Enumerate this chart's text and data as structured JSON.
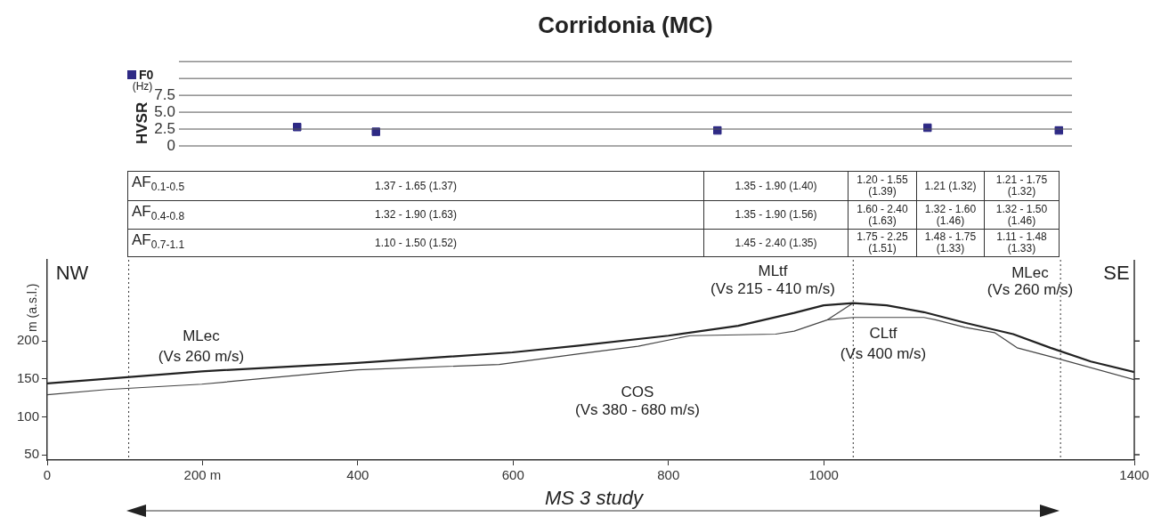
{
  "chart_data": [
    {
      "type": "scatter",
      "title": "Corridonia (MC)",
      "ylabel": "HVSR",
      "annotations": [
        "(Hz)"
      ],
      "categories": [
        null,
        null,
        null,
        null,
        null,
        null,
        null,
        null,
        null,
        null,
        null,
        null,
        null,
        null,
        null,
        null,
        null,
        null,
        null,
        null,
        null,
        null,
        null,
        null,
        null,
        null,
        null,
        null,
        null,
        null,
        null,
        null,
        null,
        null
      ],
      "series": [
        {
          "name": "F0",
          "color": "#2e2a85",
          "values": [
            null,
            null,
            null,
            null,
            2.8,
            null,
            null,
            2.1,
            null,
            null,
            null,
            null,
            null,
            null,
            null,
            null,
            null,
            null,
            null,
            null,
            2.3,
            null,
            null,
            null,
            null,
            null,
            null,
            null,
            2.7,
            null,
            null,
            null,
            null,
            2.3
          ]
        }
      ],
      "ylim": [
        0,
        12.5
      ],
      "yticks": [
        0,
        2.5,
        {
          "value": 5,
          "label": "5.0"
        },
        7.5,
        {
          "value": 10,
          "label": null
        },
        {
          "value": 12.5,
          "label": null
        }
      ],
      "grid": "y",
      "legend": "top left",
      "marker": "square",
      "tick_labels": "y"
    },
    {
      "type": "other",
      "annotations": [
        "AF$_{0.1-0.5}$",
        "1.37 - 1.65 (1.37)",
        "1.35 - 1.90 (1.40)",
        "1.20 - 1.55 (1.39)",
        "1.21 (1.32)",
        "1.21 - 1.75 (1.32)",
        "AF$_{0.4-0.8}$",
        "1.32 - 1.90 (1.63)",
        "1.35 - 1.90 (1.56)",
        "1.60 - 2.40 (1.63)",
        "1.32 - 1.60 (1.46)",
        "1.32 - 1.50 (1.46)",
        "AF$_{0.7-1.1}$",
        "1.10 - 1.50 (1.52)",
        "1.45 - 2.40 (1.35)",
        "1.75 - 2.25 (1.51)",
        "1.48 - 1.75 (1.33)",
        "1.11 - 1.48 (1.33)"
      ]
    },
    {
      "type": "line",
      "ylabel": "m (a.s.l.)",
      "marker": "none",
      "series": [
        {
          "color": "#222222",
          "x": [
            0,
            199,
            399,
            599,
            685,
            800,
            890,
            962,
            1000,
            1038,
            1081,
            1129,
            1182,
            1244,
            1292,
            1344,
            1400
          ],
          "values": [
            144,
            160,
            171,
            185,
            194,
            207,
            220,
            237,
            247,
            250,
            247,
            238,
            224,
            209,
            191,
            173,
            159
          ]
        },
        {
          "color": "#444444",
          "x": [
            0,
            77,
            199,
            399,
            582,
            685,
            761,
            828,
            938,
            962,
            1005,
            1038,
            1129,
            1144,
            1182,
            1220,
            1249,
            1297,
            1400
          ],
          "values": [
            129,
            136,
            143,
            162,
            169,
            183,
            193,
            207,
            209,
            213,
            228,
            231,
            231,
            228,
            218,
            211,
            191,
            178,
            149
          ]
        },
        {
          "color": "#444444",
          "x": [
            1005,
            1038
          ],
          "values": [
            228,
            250
          ]
        }
      ],
      "xlim": [
        0,
        1400
      ],
      "xticks": [
        0,
        {
          "value": 200,
          "label": "200 m"
        },
        400,
        600,
        800,
        1000,
        1400
      ],
      "ylim": [
        43,
        307
      ],
      "yticks": [
        50,
        100,
        150,
        200
      ],
      "ref_lines": [
        {
          "axis": "x",
          "value": 105,
          "color": "#333333",
          "line_style": "dotted"
        },
        {
          "axis": "x",
          "value": 1038,
          "color": "#333333",
          "line_style": "dotted"
        },
        {
          "axis": "x",
          "value": 1305,
          "color": "#333333",
          "line_style": "dotted"
        }
      ],
      "annotations": [
        "NW",
        "SE",
        "MLec",
        "(Vs 260 m/s)",
        "MLtf",
        "(Vs 215 - 410 m/s)",
        "CLtf",
        "(Vs 400 m/s)",
        "MLec",
        "(Vs 260 m/s)",
        "COS",
        "(Vs 380 - 680 m/s)",
        "MS 3 study"
      ]
    }
  ]
}
